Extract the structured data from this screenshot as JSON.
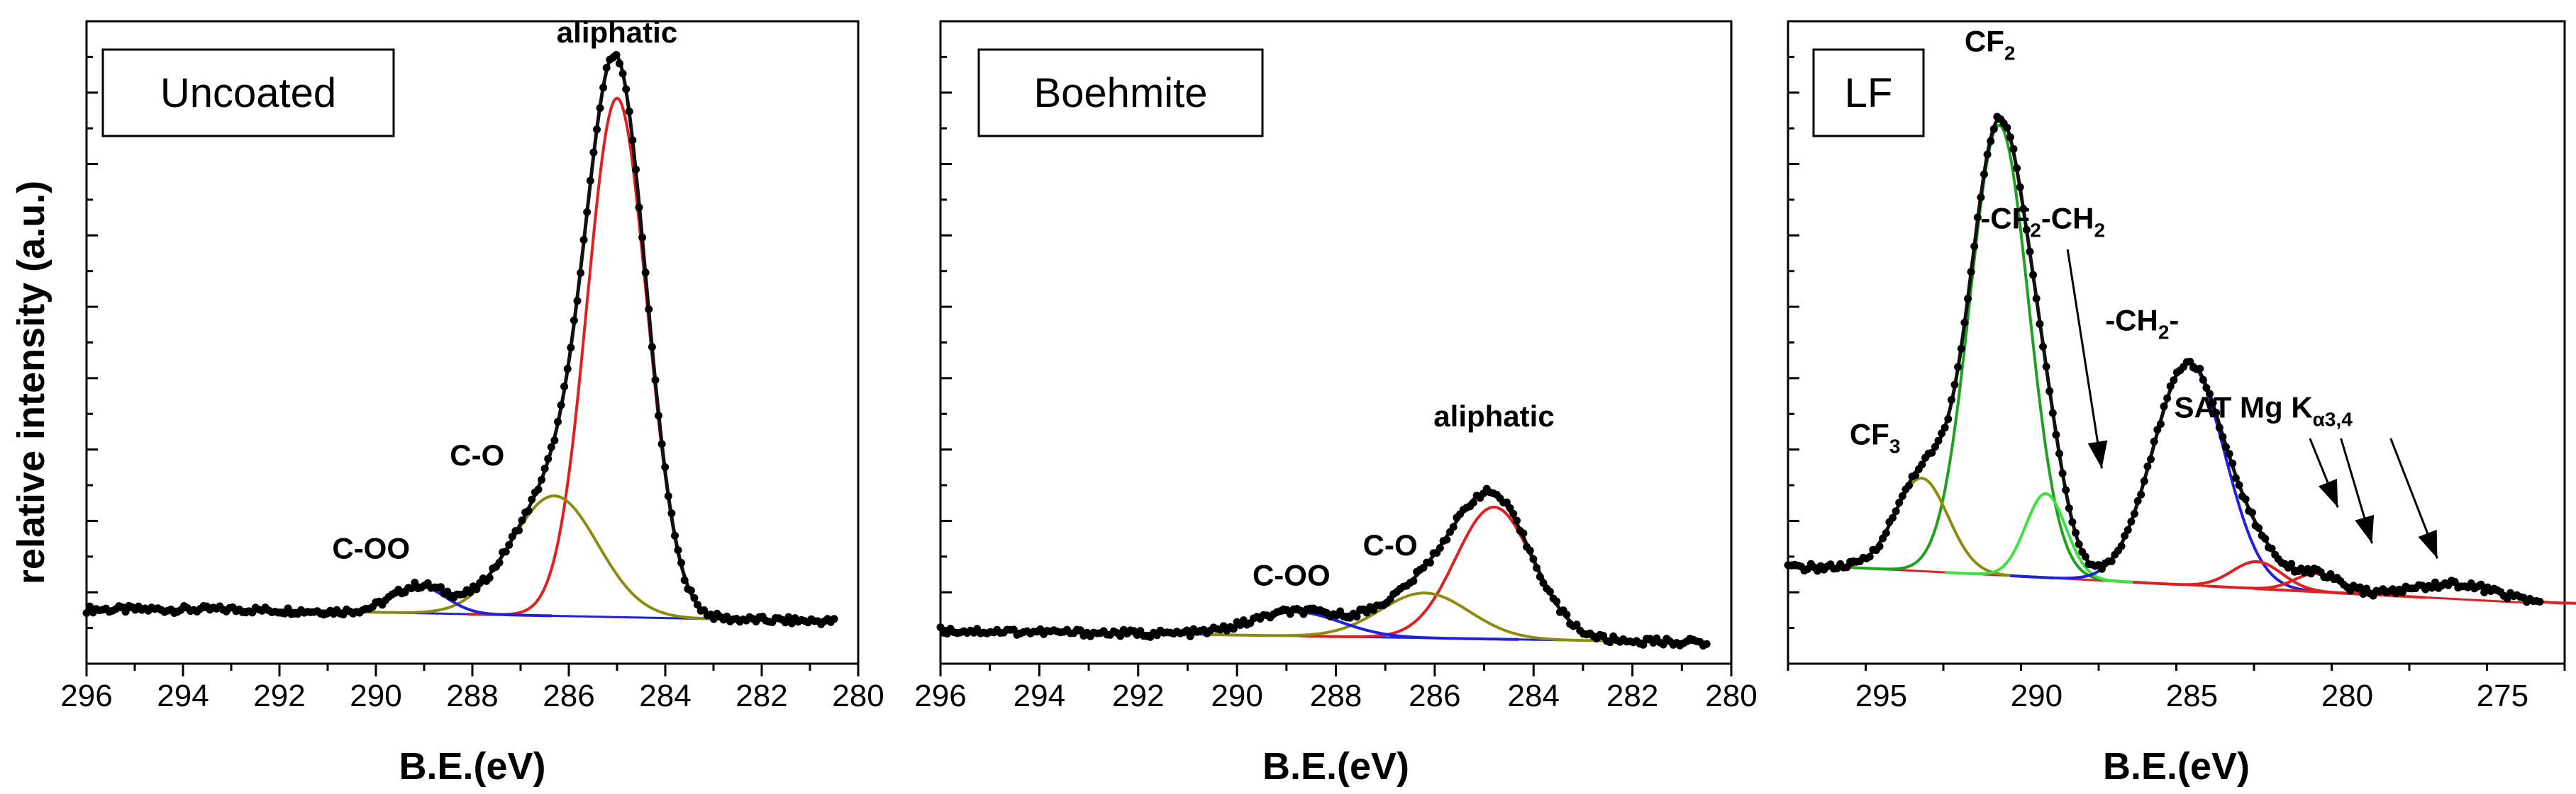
{
  "chart_data": [
    {
      "type": "line",
      "panel_label": "Uncoated",
      "xlabel": "B.E.(eV)",
      "ylabel": "relative intensity (a.u.)",
      "xlim": [
        296,
        280
      ],
      "ylim": [
        0,
        1.0
      ],
      "x_ticks": [
        296,
        294,
        292,
        290,
        288,
        286,
        284,
        282,
        280
      ],
      "x_tick_labels": [
        "296",
        "294",
        "292",
        "290",
        "288",
        "286",
        "284",
        "282",
        "280"
      ],
      "baseline": {
        "from": 0.055,
        "to": 0.035,
        "x_start": 293,
        "x_end": 280.5,
        "color": "#2020e0"
      },
      "data_range": [
        296,
        280.5
      ],
      "peaks": [
        {
          "label": "aliphatic",
          "center": 285.0,
          "height": 0.865,
          "sigma": 0.62,
          "color": "#e02020"
        },
        {
          "label": "C-O",
          "center": 286.3,
          "height": 0.2,
          "sigma": 0.9,
          "color": "#8b8b10"
        },
        {
          "label": "C-OO",
          "center": 289.1,
          "height": 0.045,
          "sigma": 0.55,
          "color": "#2020e0"
        }
      ],
      "annotations": [
        {
          "text": "aliphatic",
          "x": 285.0,
          "y": 1.0
        },
        {
          "text": "C-O",
          "x": 287.9,
          "y": 0.295
        },
        {
          "text": "C-OO",
          "x": 290.1,
          "y": 0.14
        }
      ]
    },
    {
      "type": "line",
      "panel_label": "Boehmite",
      "xlabel": "B.E.(eV)",
      "ylabel": "",
      "xlim": [
        296,
        280
      ],
      "ylim": [
        0,
        1.0
      ],
      "x_ticks": [
        296,
        294,
        292,
        290,
        288,
        286,
        284,
        282,
        280
      ],
      "x_tick_labels": [
        "296",
        "294",
        "292",
        "290",
        "288",
        "286",
        "284",
        "282",
        "280"
      ],
      "baseline": {
        "from": 0.02,
        "to": 0.0,
        "x_start": 296,
        "x_end": 280.5,
        "color": "#2020e0"
      },
      "data_range": [
        296,
        280.5
      ],
      "peaks": [
        {
          "label": "aliphatic",
          "center": 284.8,
          "height": 0.22,
          "sigma": 0.78,
          "color": "#e02020"
        },
        {
          "label": "C-O",
          "center": 286.2,
          "height": 0.075,
          "sigma": 0.9,
          "color": "#8b8b10"
        },
        {
          "label": "C-OO",
          "center": 288.8,
          "height": 0.04,
          "sigma": 0.9,
          "color": "#2020e0"
        }
      ],
      "annotations": [
        {
          "text": "aliphatic",
          "x": 284.8,
          "y": 0.36
        },
        {
          "text": "C-O",
          "x": 286.9,
          "y": 0.145
        },
        {
          "text": "C-OO",
          "x": 288.9,
          "y": 0.095
        }
      ]
    },
    {
      "type": "line",
      "panel_label": "LF",
      "xlabel": "B.E.(eV)",
      "ylabel": "",
      "xlim": [
        298,
        273
      ],
      "ylim": [
        0,
        1.0
      ],
      "x_ticks": [
        295,
        290,
        285,
        280,
        275
      ],
      "x_tick_labels": [
        "295",
        "290",
        "285",
        "280",
        "275"
      ],
      "baseline": {
        "from": 0.125,
        "to": 0.065,
        "x_start": 296,
        "x_end": 273.8,
        "color": "#e02020"
      },
      "data_range": [
        298,
        273.8
      ],
      "peaks": [
        {
          "label": "CF2",
          "center": 291.2,
          "height": 0.75,
          "sigma": 0.95,
          "color": "#20a020"
        },
        {
          "label": "CF3",
          "center": 293.7,
          "height": 0.155,
          "sigma": 0.85,
          "color": "#8b8b10"
        },
        {
          "label": "-CF2-CH2",
          "center": 289.7,
          "height": 0.14,
          "sigma": 0.65,
          "color": "#40e040"
        },
        {
          "label": "-CH2-",
          "center": 285.1,
          "height": 0.37,
          "sigma": 1.15,
          "color": "#2020e0"
        },
        {
          "label": "SAT",
          "center": 282.9,
          "height": 0.045,
          "sigma": 0.8,
          "color": "#e02020"
        },
        {
          "label": "SAT",
          "center": 281.0,
          "height": 0.03,
          "sigma": 0.7,
          "color": "#e02020"
        },
        {
          "label": "SAT",
          "center": 276.5,
          "height": 0.025,
          "sigma": 1.3,
          "color": "#e02020"
        }
      ],
      "annotations": [
        {
          "text": "CF",
          "sub": "2",
          "x": 291.5,
          "y": 0.985
        },
        {
          "text": "CF",
          "sub": "3",
          "x": 295.2,
          "y": 0.33
        },
        {
          "text": "-CF",
          "sub": "2",
          "text2": "-CH",
          "sub2": "2",
          "x": 289.8,
          "y": 0.69
        },
        {
          "text": "-CH",
          "sub": "2",
          "text2": "-",
          "x": 286.6,
          "y": 0.52
        },
        {
          "text": "SAT Mg K",
          "sub": "α3,4",
          "x": 282.7,
          "y": 0.375
        }
      ]
    }
  ]
}
